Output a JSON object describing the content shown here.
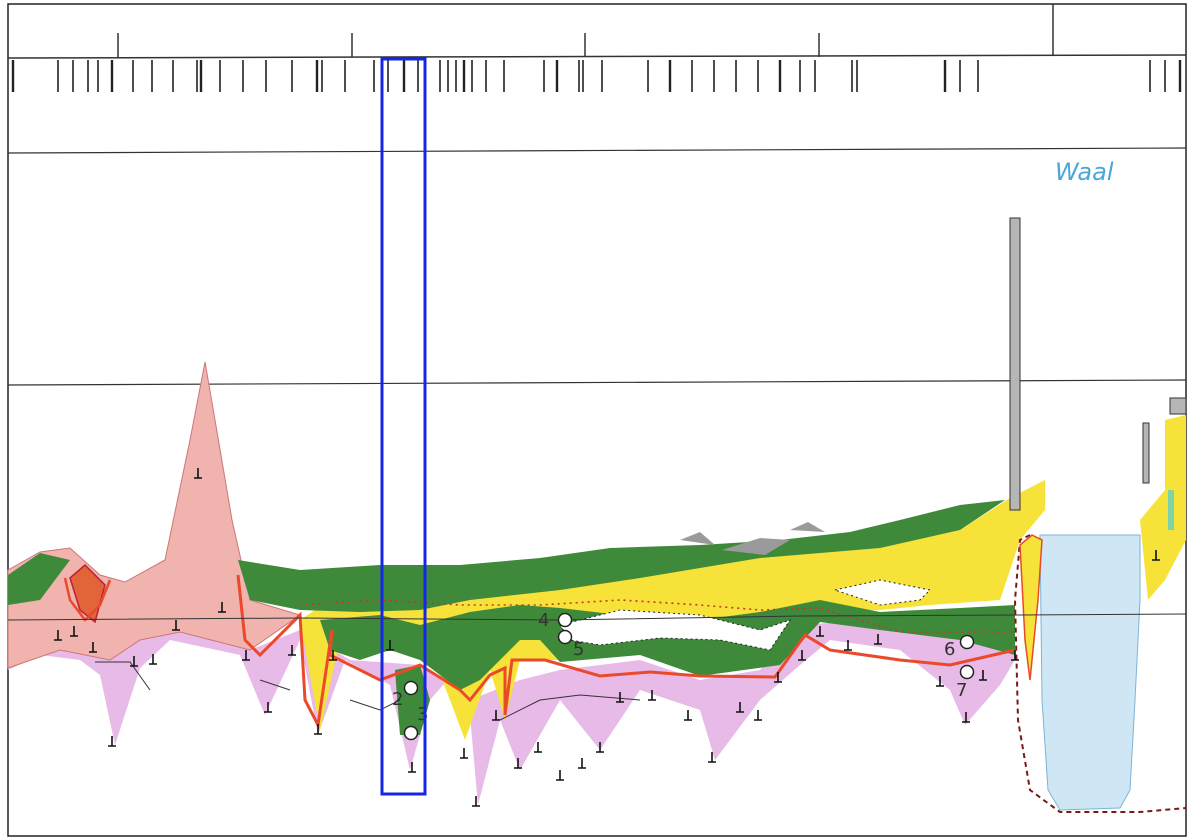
{
  "river_label": "Waal",
  "sample_points": [
    {
      "label": "2"
    },
    {
      "label": "3"
    },
    {
      "label": "4"
    },
    {
      "label": "5"
    },
    {
      "label": "6"
    },
    {
      "label": "7"
    }
  ],
  "colors": {
    "peat_pink": "#f0b3ae",
    "clay_green": "#3f8a3a",
    "sand_yellow": "#f7e23a",
    "pleistocene_purple": "#e6b2e4",
    "water_blue": "#cfe6f5",
    "boundary_red": "#ea4a2a",
    "highlight_blue": "#1427e6",
    "grid_gray": "#333333"
  }
}
